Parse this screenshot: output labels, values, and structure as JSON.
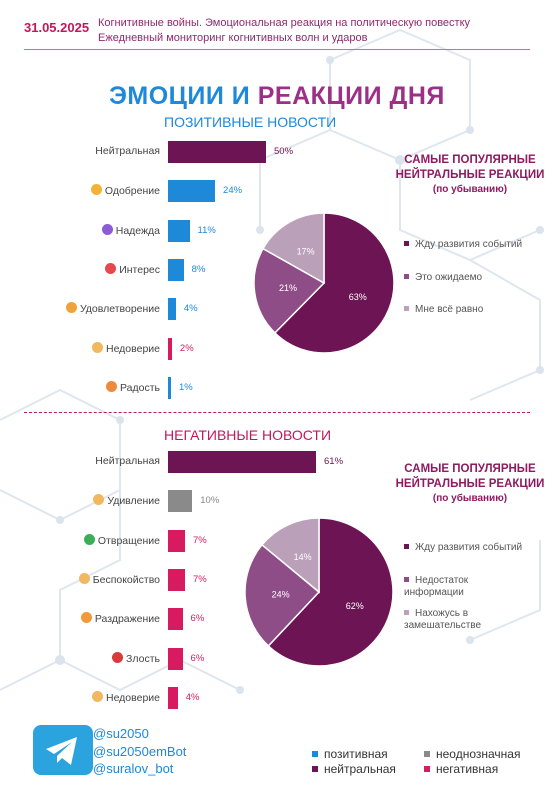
{
  "header": {
    "date": "31.05.2025",
    "line1": "Когнитивные войны. Эмоциональная реакция на политическую повестку",
    "line2": "Ежедневный мониторинг когнитивных волн и ударов"
  },
  "title": {
    "part1": "ЭМОЦИИ И ",
    "part2": "РЕАКЦИИ ДНЯ"
  },
  "colors": {
    "positive": "#1e88d9",
    "ambiguous": "#8a8a8a",
    "neutral": "#6c1454",
    "negative": "#d81b60",
    "pie_dark": "#6c1454",
    "pie_mid": "#8e4d86",
    "pie_light": "#bba0b9"
  },
  "positive_section": {
    "title": "ПОЗИТИВНЫЕ НОВОСТИ",
    "side_title": "САМЫЕ ПОПУЛЯРНЫЕ НЕЙТРАЛЬНЫЕ РЕАКЦИИ",
    "side_sub": "(по убыванию)",
    "legend": [
      "Жду развития событий",
      "Это ожидаемо",
      "Мне всё равно"
    ]
  },
  "negative_section": {
    "title": "НЕГАТИВНЫЕ НОВОСТИ",
    "side_title": "САМЫЕ ПОПУЛЯРНЫЕ НЕЙТРАЛЬНЫЕ РЕАКЦИИ",
    "side_sub": "(по убыванию)",
    "legend": [
      "Жду развития событий",
      "Недостаток информации",
      "Нахожусь в замешательстве"
    ]
  },
  "chart_data": [
    {
      "type": "bar",
      "orientation": "horizontal",
      "categories": [
        "Нейтральная",
        "Одобрение",
        "Надежда",
        "Интерес",
        "Удовлетворение",
        "Недоверие",
        "Радость"
      ],
      "values": [
        50,
        24,
        11,
        8,
        4,
        2,
        1
      ],
      "value_labels": [
        "50%",
        "24%",
        "11%",
        "8%",
        "4%",
        "2%",
        "1%"
      ],
      "tone": [
        "neutral",
        "positive",
        "positive",
        "positive",
        "positive",
        "negative",
        "positive"
      ],
      "icons": [
        "none",
        "approval-emoji",
        "hope-emoji",
        "interest-emoji",
        "satisfaction-emoji",
        "distrust-emoji",
        "joy-emoji"
      ]
    },
    {
      "type": "pie",
      "values": [
        63,
        21,
        17
      ],
      "labels": [
        "63%",
        "21%",
        "17%"
      ],
      "categories": [
        "Жду развития событий",
        "Это ожидаемо",
        "Мне всё равно"
      ]
    },
    {
      "type": "bar",
      "orientation": "horizontal",
      "categories": [
        "Нейтральная",
        "Удивление",
        "Отвращение",
        "Беспокойство",
        "Раздражение",
        "Злость",
        "Недоверие"
      ],
      "values": [
        61,
        10,
        7,
        7,
        6,
        6,
        4
      ],
      "value_labels": [
        "61%",
        "10%",
        "7%",
        "7%",
        "6%",
        "6%",
        "4%"
      ],
      "tone": [
        "neutral",
        "ambiguous",
        "negative",
        "negative",
        "negative",
        "negative",
        "negative"
      ],
      "icons": [
        "none",
        "surprise-emoji",
        "disgust-emoji",
        "worry-emoji",
        "irritation-emoji",
        "anger-emoji",
        "distrust-emoji"
      ]
    },
    {
      "type": "pie",
      "values": [
        62,
        24,
        14
      ],
      "labels": [
        "62%",
        "24%",
        "14%"
      ],
      "categories": [
        "Жду развития событий",
        "Недостаток информации",
        "Нахожусь в замешательстве"
      ]
    }
  ],
  "footer": {
    "handles": [
      "@su2050",
      "@su2050emBot",
      "@suralov_bot"
    ],
    "legend": [
      "позитивная",
      "неоднозначная",
      "нейтральная",
      "негативная"
    ],
    "telegram_icon": "telegram-icon"
  }
}
